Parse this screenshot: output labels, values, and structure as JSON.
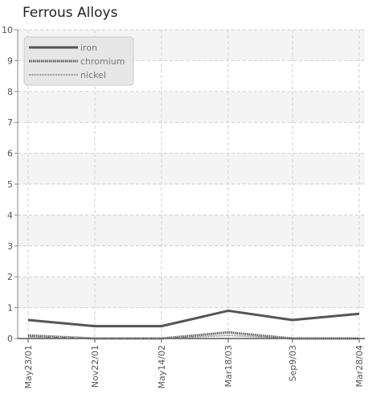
{
  "chart_data": {
    "type": "line",
    "title": "Ferrous Alloys",
    "xlabel": "",
    "ylabel": "",
    "x": [
      "May23/01",
      "Nov22/01",
      "May14/02",
      "Mar18/03",
      "Sep9/03",
      "Mar28/04"
    ],
    "ylim": [
      0,
      10
    ],
    "yticks": [
      0,
      1,
      2,
      3,
      4,
      5,
      6,
      7,
      8,
      9,
      10
    ],
    "grid": true,
    "legend_position": "top-left",
    "series": [
      {
        "name": "iron",
        "values": [
          0.6,
          0.4,
          0.4,
          0.9,
          0.6,
          0.8
        ],
        "color": "#555555",
        "style": "solid"
      },
      {
        "name": "chromium",
        "values": [
          0.1,
          0.0,
          0.0,
          0.2,
          0.0,
          0.0
        ],
        "color": "#555555",
        "style": "dotted"
      },
      {
        "name": "nickel",
        "values": [
          0.05,
          0.0,
          0.0,
          0.1,
          0.0,
          0.0
        ],
        "color": "#777777",
        "style": "fine-dotted"
      }
    ]
  }
}
